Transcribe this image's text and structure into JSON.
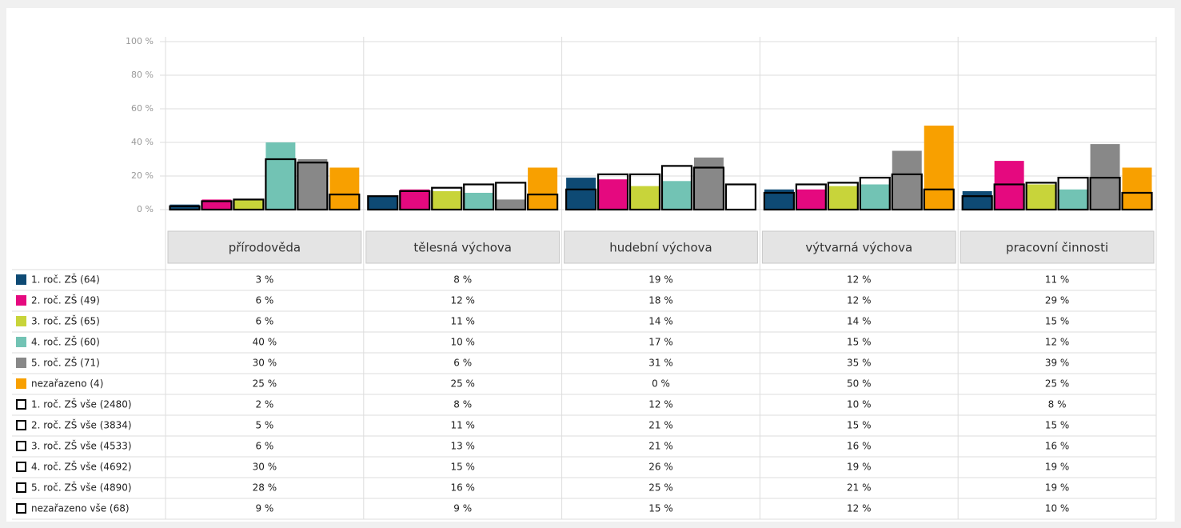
{
  "chart_data": {
    "type": "bar",
    "categories": [
      "přírodověda",
      "tělesná výchova",
      "hudební výchova",
      "výtvarná výchova",
      "pracovní činnosti"
    ],
    "ylim": [
      0,
      100
    ],
    "yticks": [
      {
        "value": 0,
        "label": "0 %"
      },
      {
        "value": 20,
        "label": "20 %"
      },
      {
        "value": 40,
        "label": "40 %"
      },
      {
        "value": 60,
        "label": "60 %"
      },
      {
        "value": 80,
        "label": "80 %"
      },
      {
        "value": 100,
        "label": "100 %"
      }
    ],
    "grid": true,
    "series": [
      {
        "name": "1. roč. ZŠ (64)",
        "color": "#0e4a74",
        "values": [
          3,
          8,
          19,
          12,
          11
        ],
        "value_labels": [
          "3 %",
          "8 %",
          "19 %",
          "12 %",
          "11 %"
        ]
      },
      {
        "name": "2. roč. ZŠ (49)",
        "color": "#e5097f",
        "values": [
          6,
          12,
          18,
          12,
          29
        ],
        "value_labels": [
          "6 %",
          "12 %",
          "18 %",
          "12 %",
          "29 %"
        ]
      },
      {
        "name": "3. roč. ZŠ (65)",
        "color": "#c8d43a",
        "values": [
          6,
          11,
          14,
          14,
          15
        ],
        "value_labels": [
          "6 %",
          "11 %",
          "14 %",
          "14 %",
          "15 %"
        ]
      },
      {
        "name": "4. roč. ZŠ (60)",
        "color": "#72c3b4",
        "values": [
          40,
          10,
          17,
          15,
          12
        ],
        "value_labels": [
          "40 %",
          "10 %",
          "17 %",
          "15 %",
          "12 %"
        ]
      },
      {
        "name": "5. roč. ZŠ (71)",
        "color": "#888888",
        "values": [
          30,
          6,
          31,
          35,
          39
        ],
        "value_labels": [
          "30 %",
          "6 %",
          "31 %",
          "35 %",
          "39 %"
        ]
      },
      {
        "name": "nezařazeno (4)",
        "color": "#f8a000",
        "values": [
          25,
          25,
          0,
          50,
          25
        ],
        "value_labels": [
          "25 %",
          "25 %",
          "0 %",
          "50 %",
          "25 %"
        ]
      },
      {
        "name": "1. roč. ZŠ vše (2480)",
        "color": "#000000",
        "outline": true,
        "values": [
          2,
          8,
          12,
          10,
          8
        ],
        "value_labels": [
          "2 %",
          "8 %",
          "12 %",
          "10 %",
          "8 %"
        ]
      },
      {
        "name": "2. roč. ZŠ vše (3834)",
        "color": "#000000",
        "outline": true,
        "values": [
          5,
          11,
          21,
          15,
          15
        ],
        "value_labels": [
          "5 %",
          "11 %",
          "21 %",
          "15 %",
          "15 %"
        ]
      },
      {
        "name": "3. roč. ZŠ vše (4533)",
        "color": "#000000",
        "outline": true,
        "values": [
          6,
          13,
          21,
          16,
          16
        ],
        "value_labels": [
          "6 %",
          "13 %",
          "21 %",
          "16 %",
          "16 %"
        ]
      },
      {
        "name": "4. roč. ZŠ vše (4692)",
        "color": "#000000",
        "outline": true,
        "values": [
          30,
          15,
          26,
          19,
          19
        ],
        "value_labels": [
          "30 %",
          "15 %",
          "26 %",
          "19 %",
          "19 %"
        ]
      },
      {
        "name": "5. roč. ZŠ vše (4890)",
        "color": "#000000",
        "outline": true,
        "values": [
          28,
          16,
          25,
          21,
          19
        ],
        "value_labels": [
          "28 %",
          "16 %",
          "25 %",
          "21 %",
          "19 %"
        ]
      },
      {
        "name": "nezařazeno vše (68)",
        "color": "#000000",
        "outline": true,
        "values": [
          9,
          9,
          15,
          12,
          10
        ],
        "value_labels": [
          "9 %",
          "9 %",
          "15 %",
          "12 %",
          "10 %"
        ]
      }
    ]
  }
}
